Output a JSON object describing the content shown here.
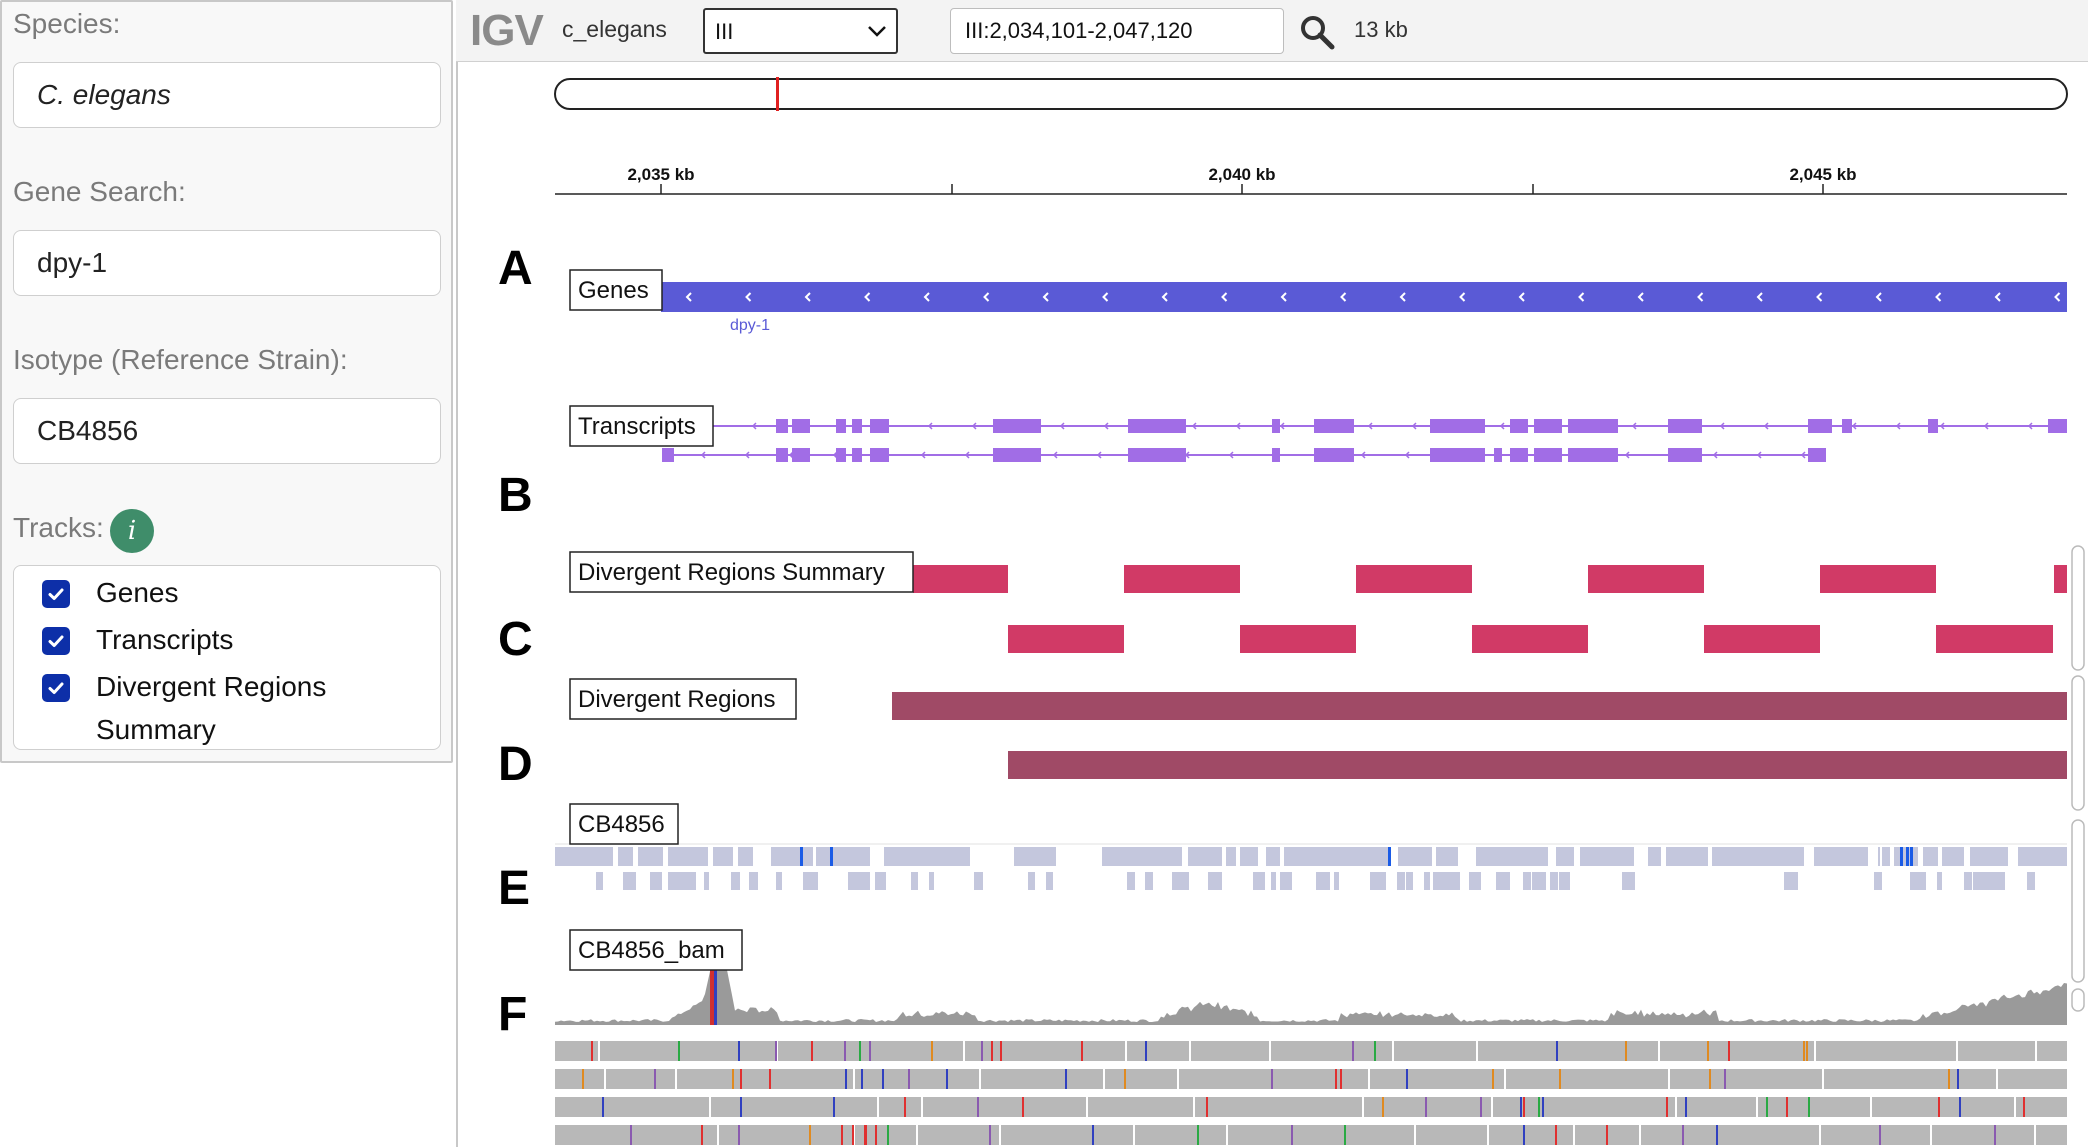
{
  "sidebar": {
    "species_label": "Species:",
    "species_value": "C. elegans",
    "gene_search_label": "Gene Search:",
    "gene_search_value": "dpy-1",
    "isotype_label": "Isotype (Reference Strain):",
    "isotype_value": "CB4856",
    "tracks_label": "Tracks:",
    "info_icon_text": "i",
    "track_options": [
      {
        "label": "Genes",
        "checked": true
      },
      {
        "label": "Transcripts",
        "checked": true
      },
      {
        "label": "Divergent Regions",
        "label2": "Summary",
        "checked": true
      }
    ]
  },
  "igv": {
    "logo": "IGV",
    "genome": "c_elegans",
    "chromosome": "III",
    "locus": "III:2,034,101-2,047,120",
    "span": "13 kb",
    "ruler_ticks": [
      "2,035 kb",
      "2,040 kb",
      "2,045 kb"
    ],
    "gene_name": "dpy-1",
    "tracks": [
      {
        "letter": "A",
        "name": "Genes"
      },
      {
        "letter": "B",
        "name": "Transcripts"
      },
      {
        "letter": "C",
        "name": "Divergent Regions Summary"
      },
      {
        "letter": "D",
        "name": "Divergent Regions"
      },
      {
        "letter": "E",
        "name": "CB4856"
      },
      {
        "letter": "F",
        "name": "CB4856_bam"
      }
    ]
  },
  "colors": {
    "gene": "#5a5ad6",
    "transcript": "#a16de6",
    "divergent_summary": "#d13a66",
    "divergent": "#a04a66",
    "variant": "#c4c7dd",
    "variant_highlight": "#1a5be6",
    "coverage": "#9a9a9a",
    "read": "#b8b8b8",
    "locus_marker": "#e02020",
    "checkbox": "#0d2fa8",
    "info_badge": "#3f8d6a"
  }
}
